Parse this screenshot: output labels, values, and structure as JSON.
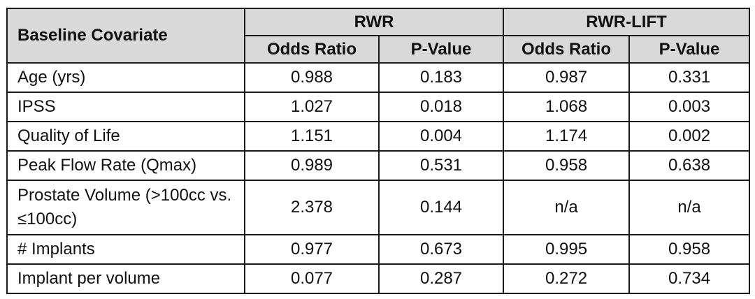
{
  "table": {
    "corner_header": "Baseline Covariate",
    "groups": [
      {
        "name": "RWR",
        "columns": [
          "Odds Ratio",
          "P-Value"
        ]
      },
      {
        "name": "RWR-LIFT",
        "columns": [
          "Odds Ratio",
          "P-Value"
        ]
      }
    ],
    "rows": [
      {
        "covariate": "Age (yrs)",
        "values": [
          "0.988",
          "0.183",
          "0.987",
          "0.331"
        ]
      },
      {
        "covariate": "IPSS",
        "values": [
          "1.027",
          "0.018",
          "1.068",
          "0.003"
        ]
      },
      {
        "covariate": "Quality of Life",
        "values": [
          "1.151",
          "0.004",
          "1.174",
          "0.002"
        ]
      },
      {
        "covariate": "Peak Flow Rate (Qmax)",
        "values": [
          "0.989",
          "0.531",
          "0.958",
          "0.638"
        ]
      },
      {
        "covariate": "Prostate Volume (>100cc vs. ≤100cc)",
        "values": [
          "2.378",
          "0.144",
          "n/a",
          "n/a"
        ]
      },
      {
        "covariate": "# Implants",
        "values": [
          "0.977",
          "0.673",
          "0.995",
          "0.958"
        ]
      },
      {
        "covariate": "Implant per volume",
        "values": [
          "0.077",
          "0.287",
          "0.272",
          "0.734"
        ]
      }
    ]
  }
}
